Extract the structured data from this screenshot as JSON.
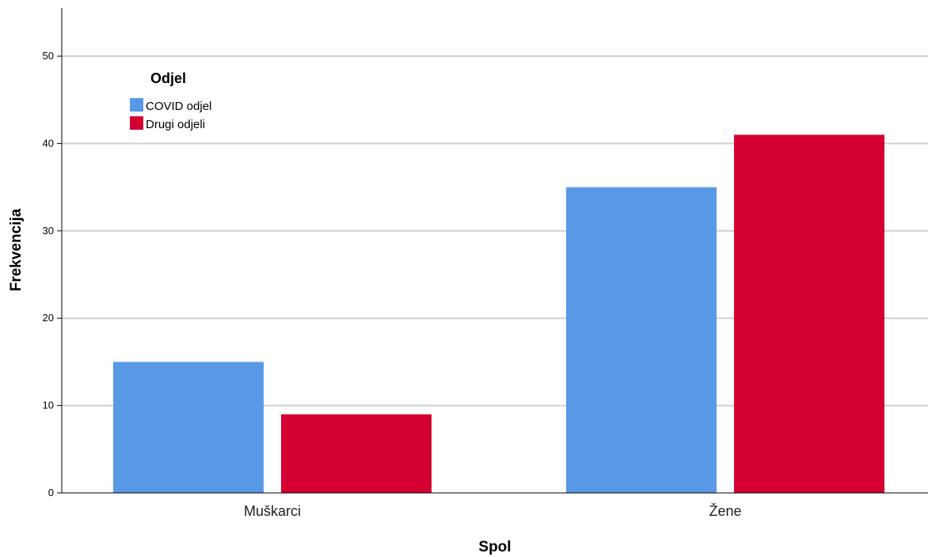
{
  "chart_data": {
    "type": "bar",
    "title": "",
    "xlabel": "Spol",
    "ylabel": "Frekvencija",
    "categories": [
      "Muškarci",
      "Žene"
    ],
    "series": [
      {
        "name": "COVID odjel",
        "values": [
          15,
          35
        ],
        "color": "#5899e6"
      },
      {
        "name": "Drugi odjeli",
        "values": [
          9,
          41
        ],
        "color": "#d50032"
      }
    ],
    "ylim": [
      0,
      55
    ],
    "yticks": [
      0,
      10,
      20,
      30,
      40,
      50
    ],
    "grid": true,
    "legend": {
      "title": "Odjel",
      "placement": "top-left"
    }
  }
}
